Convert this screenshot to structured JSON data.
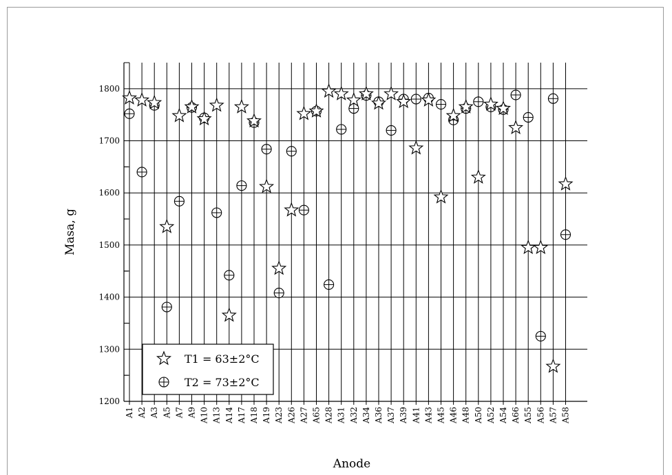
{
  "chart_data": {
    "type": "scatter",
    "xlabel": "Anode",
    "ylabel": "Masa, g",
    "ylim": [
      1200,
      1850
    ],
    "yticks": [
      1200,
      1300,
      1400,
      1500,
      1600,
      1700,
      1800
    ],
    "grid": true,
    "legend_position": "bottom-left",
    "categories": [
      "A1",
      "A2",
      "A3",
      "A5",
      "A7",
      "A9",
      "A10",
      "A13",
      "A14",
      "A17",
      "A18",
      "A19",
      "A23",
      "A26",
      "A27",
      "A65",
      "A28",
      "A31",
      "A32",
      "A34",
      "A36",
      "A37",
      "A39",
      "A41",
      "A43",
      "A45",
      "A46",
      "A48",
      "A50",
      "A52",
      "A54",
      "A66",
      "A55",
      "A56",
      "A57",
      "A58"
    ],
    "series": [
      {
        "name": "T1 = 63±2°C",
        "marker": "star",
        "values": [
          1782,
          1778,
          1773,
          1535,
          1748,
          1765,
          1742,
          1768,
          1365,
          1765,
          1738,
          1612,
          1455,
          1567,
          1752,
          1757,
          1795,
          1790,
          1778,
          1790,
          1772,
          1790,
          1775,
          1686,
          1778,
          1592,
          1748,
          1765,
          1630,
          1770,
          1762,
          1725,
          1495,
          1495,
          1267,
          1617
        ]
      },
      {
        "name": "T2 = 73±2°C",
        "marker": "circle-cross",
        "values": [
          1752,
          1640,
          1768,
          1381,
          1584,
          1764,
          1744,
          1562,
          1442,
          1614,
          1735,
          1684,
          1408,
          1680,
          1567,
          1757,
          1424,
          1722,
          1762,
          1787,
          1775,
          1720,
          1780,
          1780,
          1782,
          1770,
          1740,
          1762,
          1775,
          1765,
          1760,
          1788,
          1745,
          1325,
          1781,
          1520
        ]
      }
    ]
  }
}
